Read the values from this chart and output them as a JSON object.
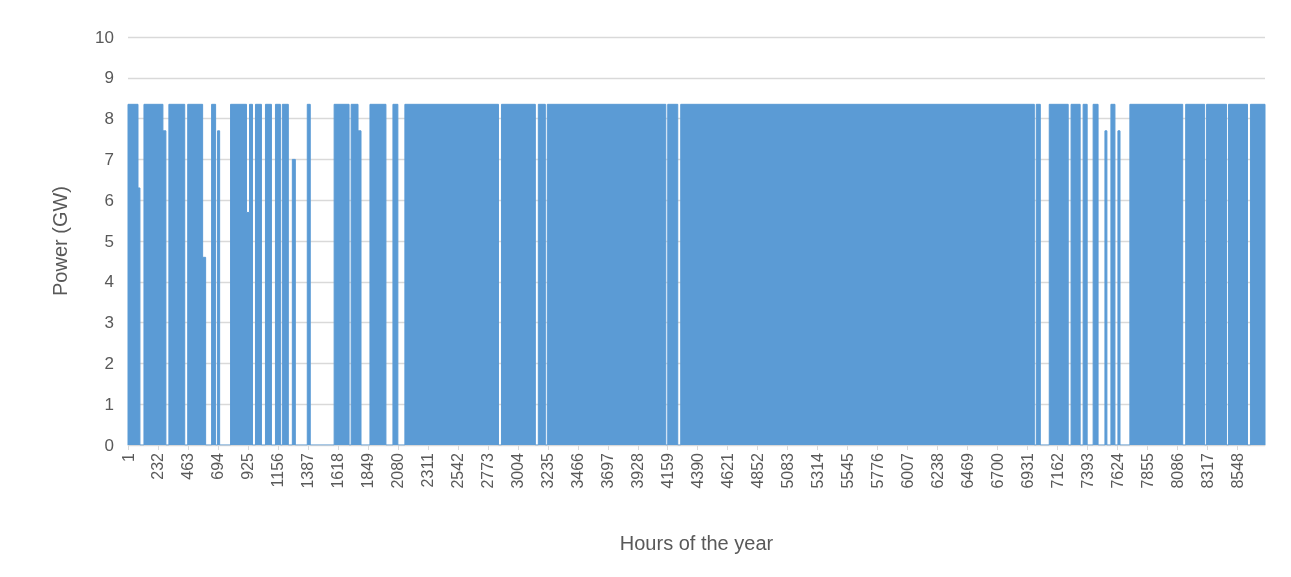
{
  "chart_data": {
    "type": "area",
    "xlabel": "Hours of the year",
    "ylabel": "Power (GW)",
    "xlim": [
      1,
      8760
    ],
    "xticks": [
      1,
      232,
      463,
      694,
      925,
      1156,
      1387,
      1618,
      1849,
      2080,
      2311,
      2542,
      2773,
      3004,
      3235,
      3466,
      3697,
      3928,
      4159,
      4390,
      4621,
      4852,
      5083,
      5314,
      5545,
      5776,
      6007,
      6238,
      6469,
      6700,
      6931,
      7162,
      7393,
      7624,
      7855,
      8086,
      8317,
      8548
    ],
    "ylim": [
      0,
      10
    ],
    "yticks": [
      0,
      1,
      2,
      3,
      4,
      5,
      6,
      7,
      8,
      9,
      10
    ],
    "grid": "y",
    "series": [
      {
        "color": "#5b9bd5",
        "x": [
          1,
          1,
          78,
          78,
          93,
          93,
          124,
          124,
          270,
          270,
          293,
          293,
          316,
          316,
          438,
          438,
          461,
          461,
          576,
          576,
          599,
          599,
          645,
          645,
          676,
          676,
          691,
          691,
          707,
          707,
          791,
          791,
          914,
          914,
          937,
          937,
          960,
          960,
          983,
          983,
          1029,
          1029,
          1060,
          1060,
          1106,
          1106,
          1137,
          1137,
          1175,
          1175,
          1190,
          1190,
          1236,
          1236,
          1267,
          1267,
          1290,
          1290,
          1382,
          1382,
          1405,
          1405,
          1589,
          1589,
          1704,
          1704,
          1720,
          1720,
          1773,
          1773,
          1796,
          1796,
          1865,
          1865,
          1988,
          1988,
          2042,
          2042,
          2080,
          2080,
          2134,
          2134,
          2855,
          2855,
          2878,
          2878,
          3139,
          3139,
          3162,
          3162,
          3216,
          3216,
          3231,
          3231,
          4144,
          4144,
          4159,
          4159,
          4236,
          4236,
          4259,
          4259,
          6983,
          6983,
          6998,
          6998,
          7029,
          7029,
          7098,
          7098,
          7244,
          7244,
          7266,
          7266,
          7336,
          7336,
          7359,
          7359,
          7390,
          7390,
          7436,
          7436,
          7474,
          7474,
          7527,
          7527,
          7542,
          7542,
          7573,
          7573,
          7604,
          7604,
          7627,
          7627,
          7643,
          7643,
          7719,
          7719,
          8126,
          8126,
          8149,
          8149,
          8295,
          8295,
          8310,
          8310,
          8464,
          8464,
          8479,
          8479,
          8625,
          8625,
          8648,
          8648,
          8760,
          8760
        ],
        "values": [
          0,
          8.35,
          8.35,
          6.3,
          6.3,
          0,
          0,
          8.35,
          8.35,
          7.7,
          7.7,
          0,
          0,
          8.35,
          8.35,
          0,
          0,
          8.35,
          8.35,
          4.6,
          4.6,
          0,
          0,
          8.35,
          8.35,
          0,
          0,
          7.7,
          7.7,
          0,
          0,
          8.35,
          8.35,
          5.7,
          5.7,
          8.35,
          8.35,
          0,
          0,
          8.35,
          8.35,
          0,
          0,
          8.35,
          8.35,
          0,
          0,
          8.35,
          8.35,
          0,
          0,
          8.35,
          8.35,
          0,
          0,
          7.0,
          7.0,
          0,
          0,
          8.35,
          8.35,
          0,
          0,
          8.35,
          8.35,
          0,
          0,
          8.35,
          8.35,
          7.7,
          7.7,
          0,
          0,
          8.35,
          8.35,
          0,
          0,
          8.35,
          8.35,
          0,
          0,
          8.35,
          8.35,
          0,
          0,
          8.35,
          8.35,
          0,
          0,
          8.35,
          8.35,
          0,
          0,
          8.35,
          8.35,
          0,
          0,
          8.35,
          8.35,
          0,
          0,
          8.35,
          8.35,
          0,
          0,
          8.35,
          8.35,
          0,
          0,
          8.35,
          8.35,
          0,
          0,
          8.35,
          8.35,
          0,
          0,
          8.35,
          8.35,
          0,
          0,
          8.35,
          8.35,
          0,
          0,
          7.7,
          7.7,
          0,
          0,
          8.35,
          8.35,
          0,
          0,
          7.7,
          7.7,
          0,
          0,
          8.35,
          8.35,
          0,
          0,
          8.35,
          8.35,
          0,
          0,
          8.35,
          8.35,
          0,
          0,
          8.35,
          8.35,
          0,
          0,
          8.35,
          8.35,
          0
        ]
      }
    ]
  }
}
